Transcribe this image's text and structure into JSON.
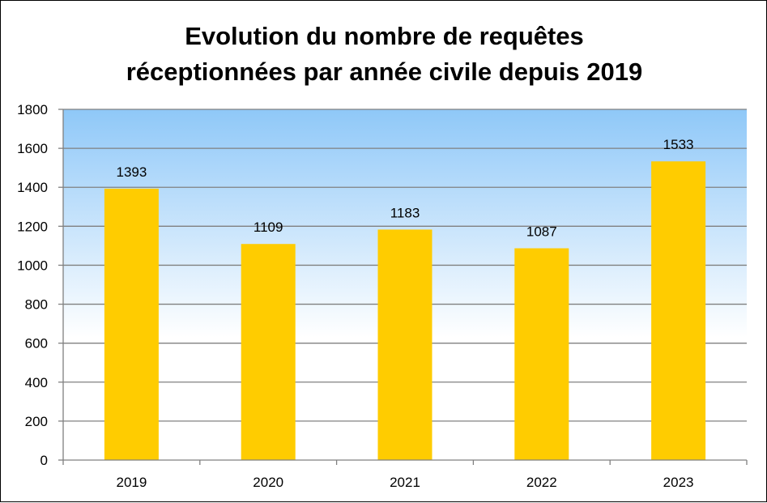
{
  "chart_data": {
    "type": "bar",
    "title": [
      "Evolution du nombre de requêtes",
      "réceptionnées par année civile depuis 2019"
    ],
    "categories": [
      "2019",
      "2020",
      "2021",
      "2022",
      "2023"
    ],
    "values": [
      1393,
      1109,
      1183,
      1087,
      1533
    ],
    "data_labels": [
      "1393",
      "1109",
      "1183",
      "1087",
      "1533"
    ],
    "y_ticks": [
      "0",
      "200",
      "400",
      "600",
      "800",
      "1000",
      "1200",
      "1400",
      "1600",
      "1800"
    ],
    "ylim": [
      0,
      1800
    ],
    "y_step": 200,
    "grid": true,
    "legend": "none",
    "colors": {
      "bar": "#FFCC00",
      "plot_gradient_top": "#8FC8F8",
      "plot_gradient_bottom": "#FFFFFF",
      "gridline": "#808080",
      "axis": "#808080"
    }
  }
}
